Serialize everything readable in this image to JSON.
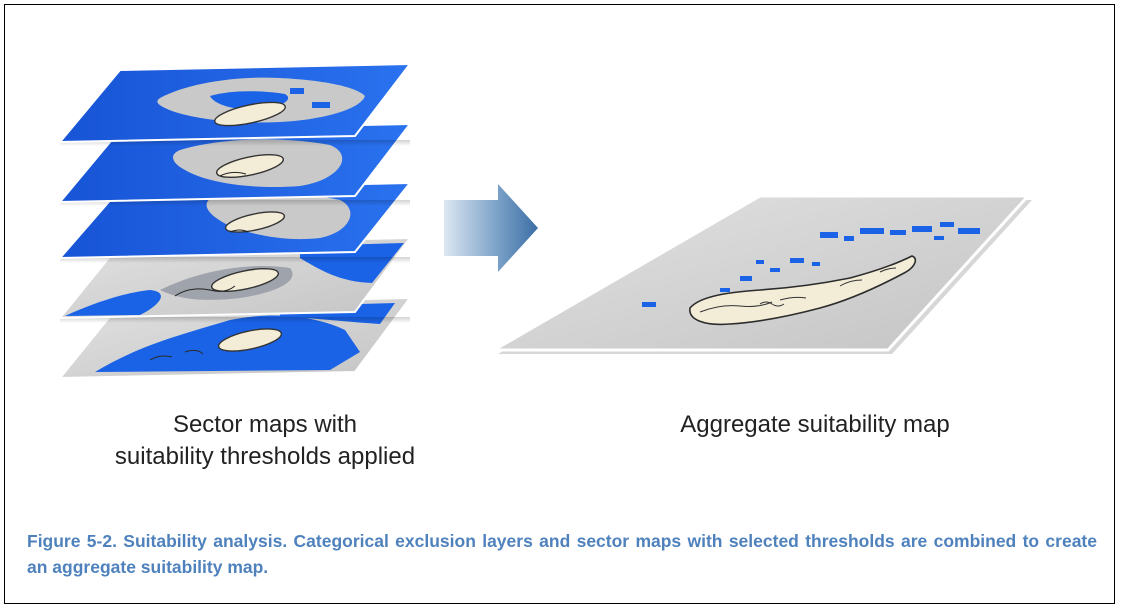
{
  "figure": {
    "left_label_line1": "Sector maps with",
    "left_label_line2": "suitability thresholds applied",
    "right_label": "Aggregate suitability map",
    "caption": "Figure 5-2. Suitability analysis. Categorical exclusion layers and sector maps with selected thresholds are combined to create an aggregate suitability map."
  },
  "colors": {
    "layer_blue": "#1a62e6",
    "layer_gray": "#d3d3d3",
    "arrow_dark": "#3b6ea5",
    "arrow_light": "#c9d9ea",
    "caption_text": "#4f82bd",
    "island": "#f3ecd7"
  },
  "diagram": {
    "sector_layer_count": 5,
    "arrow_direction": "right"
  }
}
